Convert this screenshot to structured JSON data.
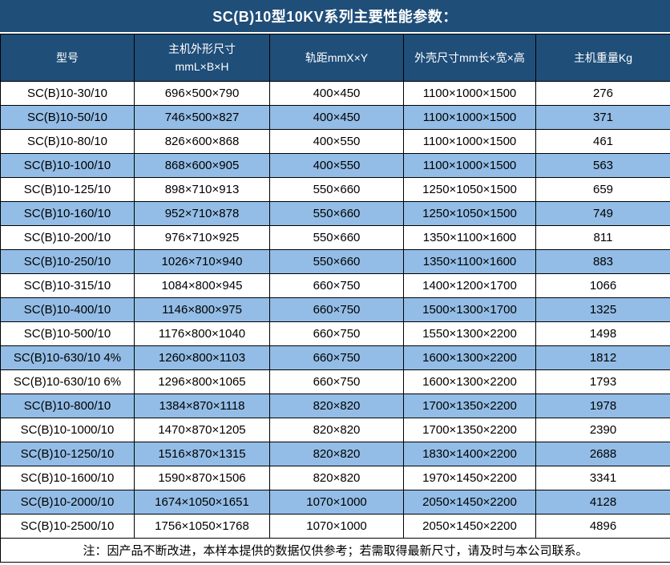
{
  "title": "SC(B)10型10KV系列主要性能参数：",
  "colors": {
    "header_bg": "#1F4E79",
    "header_text": "#FFFFFF",
    "row_alt_bg": "#93BDE6",
    "row_bg": "#FFFFFF",
    "border": "#000000",
    "body_text": "#000000"
  },
  "table": {
    "columns": [
      {
        "label": "型号"
      },
      {
        "line1": "主机外形尺寸",
        "line2": "mmL×B×H"
      },
      {
        "label": "轨距mmX×Y"
      },
      {
        "label": "外壳尺寸mm长×宽×高"
      },
      {
        "label": "主机重量Kg"
      }
    ],
    "rows": [
      [
        "SC(B)10-30/10",
        "696×500×790",
        "400×450",
        "1100×1000×1500",
        "276"
      ],
      [
        "SC(B)10-50/10",
        "746×500×827",
        "400×450",
        "1100×1000×1500",
        "371"
      ],
      [
        "SC(B)10-80/10",
        "826×600×868",
        "400×550",
        "1100×1000×1500",
        "461"
      ],
      [
        "SC(B)10-100/10",
        "868×600×905",
        "400×550",
        "1100×1000×1500",
        "563"
      ],
      [
        "SC(B)10-125/10",
        "898×710×913",
        "550×660",
        "1250×1050×1500",
        "659"
      ],
      [
        "SC(B)10-160/10",
        "952×710×878",
        "550×660",
        "1250×1050×1500",
        "749"
      ],
      [
        "SC(B)10-200/10",
        "976×710×925",
        "550×660",
        "1350×1100×1600",
        "811"
      ],
      [
        "SC(B)10-250/10",
        "1026×710×940",
        "550×660",
        "1350×1100×1600",
        "883"
      ],
      [
        "SC(B)10-315/10",
        "1084×800×945",
        "660×750",
        "1400×1200×1700",
        "1066"
      ],
      [
        "SC(B)10-400/10",
        "1146×800×975",
        "660×750",
        "1500×1300×1700",
        "1325"
      ],
      [
        "SC(B)10-500/10",
        "1176×800×1040",
        "660×750",
        "1550×1300×2200",
        "1498"
      ],
      [
        "SC(B)10-630/10 4%",
        "1260×800×1103",
        "660×750",
        "1600×1300×2200",
        "1812"
      ],
      [
        "SC(B)10-630/10 6%",
        "1296×800×1065",
        "660×750",
        "1600×1300×2200",
        "1793"
      ],
      [
        "SC(B)10-800/10",
        "1384×870×1118",
        "820×820",
        "1700×1350×2200",
        "1978"
      ],
      [
        "SC(B)10-1000/10",
        "1470×870×1205",
        "820×820",
        "1700×1350×2200",
        "2390"
      ],
      [
        "SC(B)10-1250/10",
        "1516×870×1315",
        "820×820",
        "1830×1400×2200",
        "2688"
      ],
      [
        "SC(B)10-1600/10",
        "1590×870×1506",
        "820×820",
        "1970×1450×2200",
        "3341"
      ],
      [
        "SC(B)10-2000/10",
        "1674×1050×1651",
        "1070×1000",
        "2050×1450×2200",
        "4128"
      ],
      [
        "SC(B)10-2500/10",
        "1756×1050×1768",
        "1070×1000",
        "2050×1450×2200",
        "4896"
      ]
    ]
  },
  "note": "注：因产品不断改进，本样本提供的数据仅供参考；若需取得最新尺寸，请及时与本公司联系。"
}
